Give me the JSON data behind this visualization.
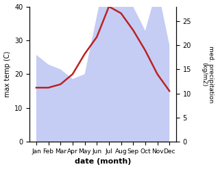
{
  "months": [
    "Jan",
    "Feb",
    "Mar",
    "Apr",
    "May",
    "Jun",
    "Jul",
    "Aug",
    "Sep",
    "Oct",
    "Nov",
    "Dec"
  ],
  "temp": [
    16,
    16,
    17,
    20,
    26,
    31,
    40,
    38,
    33,
    27,
    20,
    15
  ],
  "precip": [
    18,
    16,
    15,
    13,
    14,
    26,
    38,
    37,
    28,
    23,
    32,
    20
  ],
  "temp_color": "#bb2222",
  "precip_color_fill": "#c5cdf5",
  "ylabel_left": "max temp (C)",
  "ylabel_right": "med. precipitation\n(kg/m2)",
  "xlabel": "date (month)",
  "ylim_left": [
    0,
    40
  ],
  "ylim_right": [
    0,
    28
  ],
  "yticks_left": [
    0,
    10,
    20,
    30,
    40
  ],
  "yticks_right": [
    0,
    5,
    10,
    15,
    20,
    25
  ],
  "bg_color": "#ffffff",
  "line_width": 1.8
}
